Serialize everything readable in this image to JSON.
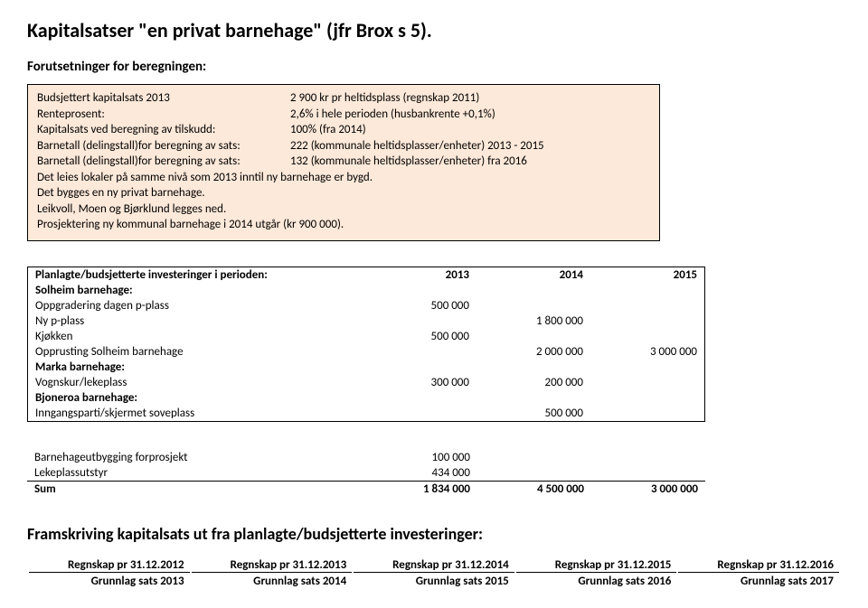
{
  "title": "Kapitalsatser \"en privat barnehage\" (jfr Brox s 5).",
  "forutsetninger_header": "Forutsetninger for beregningen:",
  "box": {
    "lines": [
      {
        "label": "Budsjettert kapitalsats 2013",
        "value": "2 900 kr pr heltidsplass (regnskap 2011)"
      },
      {
        "label": "Renteprosent:",
        "value": "2,6% i hele perioden (husbankrente +0,1%)"
      },
      {
        "label": "Kapitalsats ved beregning av tilskudd:",
        "value": "100% (fra 2014)"
      },
      {
        "label": "Barnetall (delingstall)for beregning av sats:",
        "value": "222 (kommunale heltidsplasser/enheter) 2013 - 2015"
      },
      {
        "label": "Barnetall (delingstall)for beregning av sats:",
        "value": "132 (kommunale heltidsplasser/enheter) fra  2016"
      }
    ],
    "text_lines": [
      "Det leies lokaler på samme nivå som 2013 inntil ny barnehage er bygd.",
      "Det bygges  en ny privat barnehage.",
      "Leikvoll, Moen og Bjørklund legges ned.",
      "Prosjektering ny kommunal barnehage i 2014 utgår (kr 900 000)."
    ]
  },
  "plan": {
    "header": "Planlagte/budsjetterte investeringer i perioden:",
    "years": [
      "2013",
      "2014",
      "2015"
    ],
    "groups": [
      {
        "name": "Solheim barnehage:",
        "rows": [
          {
            "label": "Oppgradering dagen p-plass",
            "v": [
              "500 000",
              "",
              ""
            ]
          },
          {
            "label": "Ny p-plass",
            "v": [
              "",
              "1 800 000",
              ""
            ]
          },
          {
            "label": "Kjøkken",
            "v": [
              "500 000",
              "",
              ""
            ]
          },
          {
            "label": "Opprusting Solheim barnehage",
            "v": [
              "",
              "2 000 000",
              "3 000 000"
            ]
          }
        ]
      },
      {
        "name": "Marka barnehage:",
        "rows": [
          {
            "label": "Vognskur/lekeplass",
            "v": [
              "300 000",
              "200 000",
              ""
            ]
          }
        ]
      },
      {
        "name": "Bjoneroa barnehage:",
        "rows": [
          {
            "label": "Inngangsparti/skjermet soveplass",
            "v": [
              "",
              "500 000",
              ""
            ]
          }
        ]
      }
    ],
    "extra_rows": [
      {
        "label": "Barnehageutbygging forprosjekt",
        "v": [
          "100 000",
          "",
          ""
        ]
      },
      {
        "label": "Lekeplassutstyr",
        "v": [
          "434 000",
          "",
          ""
        ]
      }
    ],
    "sum_label": "Sum",
    "sum": [
      "1 834 000",
      "4 500 000",
      "3 000 000"
    ]
  },
  "framskriving": "Framskriving kapitalsats ut fra planlagte/budsjetterte investeringer:",
  "regnskap": {
    "dates": [
      "Regnskap pr  31.12.2012",
      "Regnskap pr  31.12.2013",
      "Regnskap pr  31.12.2014",
      "Regnskap pr  31.12.2015",
      "Regnskap pr  31.12.2016"
    ],
    "grunnlag": [
      "Grunnlag sats 2013",
      "Grunnlag sats 2014",
      "Grunnlag sats 2015",
      "Grunnlag sats 2016",
      "Grunnlag sats 2017"
    ]
  }
}
